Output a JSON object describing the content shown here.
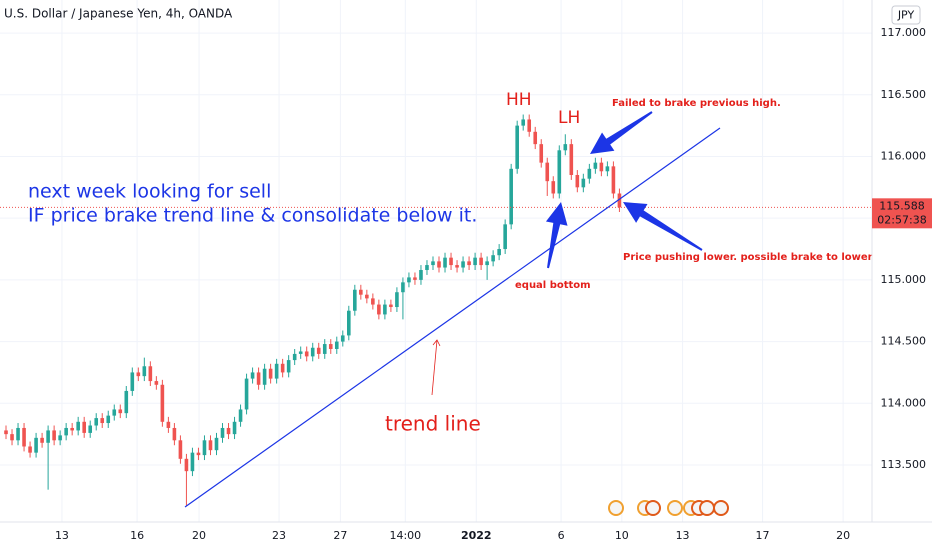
{
  "chart_data": {
    "type": "candlestick",
    "title": "U.S. Dollar / Japanese Yen, 4h, OANDA",
    "currency": "JPY",
    "countdown": "02:57:38",
    "up_color": "#26a69a",
    "down_color": "#ef5350",
    "grid": true,
    "xlim": [
      -1,
      144
    ],
    "ylim": [
      113.038,
      117.268
    ],
    "xticks": [
      {
        "value": 9.3,
        "label": "13"
      },
      {
        "value": 21.8,
        "label": "16"
      },
      {
        "value": 32.1,
        "label": "20"
      },
      {
        "value": 45.4,
        "label": "23"
      },
      {
        "value": 55.6,
        "label": "27"
      },
      {
        "value": 66.4,
        "label": "14:00"
      },
      {
        "value": 78.2,
        "label": "2022"
      },
      {
        "value": 92.3,
        "label": "6"
      },
      {
        "value": 102.4,
        "label": "10"
      },
      {
        "value": 112.5,
        "label": "13"
      },
      {
        "value": 125.8,
        "label": "17"
      },
      {
        "value": 139.2,
        "label": "20"
      }
    ],
    "yticks": [
      {
        "value": 113.5,
        "label": "113.500"
      },
      {
        "value": 114,
        "label": "114.000"
      },
      {
        "value": 114.5,
        "label": "114.500"
      },
      {
        "value": 115,
        "label": "115.000"
      },
      {
        "value": 115.5,
        "label": "115.500"
      },
      {
        "value": 116,
        "label": "116.000"
      },
      {
        "value": 116.5,
        "label": "116.500"
      },
      {
        "value": 117,
        "label": "117.000"
      }
    ],
    "open": [
      113.78,
      113.75,
      113.7,
      113.8,
      113.65,
      113.6,
      113.72,
      113.68,
      113.78,
      113.7,
      113.74,
      113.8,
      113.78,
      113.85,
      113.76,
      113.82,
      113.88,
      113.84,
      113.9,
      113.95,
      113.92,
      114.1,
      114.25,
      114.22,
      114.3,
      114.18,
      114.15,
      113.85,
      113.8,
      113.7,
      113.55,
      113.45,
      113.6,
      113.58,
      113.7,
      113.62,
      113.72,
      113.8,
      113.75,
      113.85,
      113.95,
      114.2,
      114.25,
      114.15,
      114.28,
      114.2,
      114.32,
      114.25,
      114.35,
      114.4,
      114.42,
      114.38,
      114.45,
      114.4,
      114.48,
      114.44,
      114.5,
      114.55,
      114.75,
      114.92,
      114.88,
      114.85,
      114.8,
      114.72,
      114.8,
      114.78,
      114.9,
      114.98,
      115.02,
      115.0,
      115.08,
      115.12,
      115.15,
      115.1,
      115.18,
      115.12,
      115.1,
      115.15,
      115.12,
      115.18,
      115.12,
      115.15,
      115.2,
      115.25,
      115.45,
      115.9,
      116.25,
      116.3,
      116.2,
      116.1,
      115.95,
      115.8,
      115.7,
      116.05,
      116.1,
      115.85,
      115.75,
      115.82,
      115.9,
      115.95,
      115.88,
      115.92,
      115.7
    ],
    "high": [
      113.82,
      113.79,
      113.84,
      113.84,
      113.69,
      113.76,
      113.76,
      113.82,
      113.82,
      113.78,
      113.84,
      113.84,
      113.89,
      113.89,
      113.86,
      113.92,
      113.92,
      113.94,
      113.99,
      113.99,
      114.14,
      114.29,
      114.29,
      114.37,
      114.34,
      114.22,
      114.19,
      113.89,
      113.84,
      113.74,
      113.59,
      113.64,
      113.64,
      113.74,
      113.74,
      113.76,
      113.84,
      113.84,
      113.89,
      113.99,
      114.24,
      114.29,
      114.29,
      114.32,
      114.32,
      114.36,
      114.36,
      114.39,
      114.44,
      114.46,
      114.46,
      114.49,
      114.49,
      114.52,
      114.52,
      114.54,
      114.59,
      114.79,
      114.96,
      114.96,
      114.92,
      114.89,
      114.84,
      114.84,
      114.84,
      114.94,
      115.02,
      115.06,
      115.06,
      115.12,
      115.16,
      115.19,
      115.19,
      115.22,
      115.22,
      115.16,
      115.19,
      115.19,
      115.22,
      115.22,
      115.19,
      115.24,
      115.29,
      115.49,
      115.94,
      116.29,
      116.34,
      116.34,
      116.24,
      116.14,
      115.99,
      115.84,
      116.09,
      116.18,
      116.14,
      115.89,
      115.86,
      115.94,
      115.99,
      115.99,
      115.96,
      115.96,
      115.74
    ],
    "low": [
      113.71,
      113.66,
      113.66,
      113.61,
      113.56,
      113.56,
      113.64,
      113.3,
      113.66,
      113.66,
      113.7,
      113.74,
      113.74,
      113.72,
      113.72,
      113.78,
      113.8,
      113.8,
      113.86,
      113.88,
      113.88,
      114.06,
      114.18,
      114.18,
      114.14,
      114.11,
      113.81,
      113.76,
      113.66,
      113.51,
      113.17,
      113.41,
      113.54,
      113.54,
      113.58,
      113.58,
      113.68,
      113.71,
      113.71,
      113.81,
      113.91,
      114.16,
      114.11,
      114.11,
      114.16,
      114.16,
      114.21,
      114.21,
      114.31,
      114.36,
      114.34,
      114.34,
      114.36,
      114.36,
      114.4,
      114.4,
      114.46,
      114.51,
      114.71,
      114.84,
      114.81,
      114.76,
      114.68,
      114.68,
      114.74,
      114.74,
      114.68,
      114.94,
      114.96,
      114.96,
      115.04,
      115.08,
      115.06,
      115.06,
      115.08,
      115.06,
      115.06,
      115.08,
      115.08,
      115.08,
      115.0,
      115.11,
      115.16,
      115.21,
      115.41,
      115.86,
      116.21,
      116.16,
      116.06,
      115.91,
      115.68,
      115.66,
      115.66,
      116.01,
      115.81,
      115.71,
      115.71,
      115.78,
      115.86,
      115.84,
      115.84,
      115.66,
      115.55
    ],
    "close": [
      113.75,
      113.7,
      113.8,
      113.65,
      113.6,
      113.72,
      113.68,
      113.78,
      113.7,
      113.74,
      113.8,
      113.78,
      113.85,
      113.76,
      113.82,
      113.88,
      113.84,
      113.9,
      113.95,
      113.92,
      114.1,
      114.25,
      114.22,
      114.3,
      114.18,
      114.15,
      113.85,
      113.8,
      113.7,
      113.55,
      113.45,
      113.6,
      113.58,
      113.7,
      113.62,
      113.72,
      113.8,
      113.75,
      113.85,
      113.95,
      114.2,
      114.25,
      114.15,
      114.28,
      114.2,
      114.32,
      114.25,
      114.35,
      114.4,
      114.42,
      114.38,
      114.45,
      114.4,
      114.48,
      114.44,
      114.5,
      114.55,
      114.75,
      114.92,
      114.88,
      114.85,
      114.8,
      114.72,
      114.8,
      114.78,
      114.9,
      114.98,
      115.02,
      115.0,
      115.08,
      115.12,
      115.15,
      115.1,
      115.18,
      115.12,
      115.1,
      115.15,
      115.12,
      115.18,
      115.12,
      115.15,
      115.2,
      115.25,
      115.45,
      115.9,
      116.25,
      116.3,
      116.2,
      116.1,
      115.95,
      115.8,
      115.7,
      116.05,
      116.1,
      115.85,
      115.75,
      115.82,
      115.9,
      115.95,
      115.88,
      115.92,
      115.7,
      115.588
    ],
    "annotations": {
      "sell_line1": "next week looking for sell",
      "sell_line2": "IF price brake trend line & consolidate below it.",
      "hh": "HH",
      "lh": "LH",
      "failed": "Failed to brake previous high.",
      "pushing": "Price pushing lower. possible brake to lower",
      "equal_bottom": "equal bottom",
      "trend_line": "trend line"
    }
  }
}
